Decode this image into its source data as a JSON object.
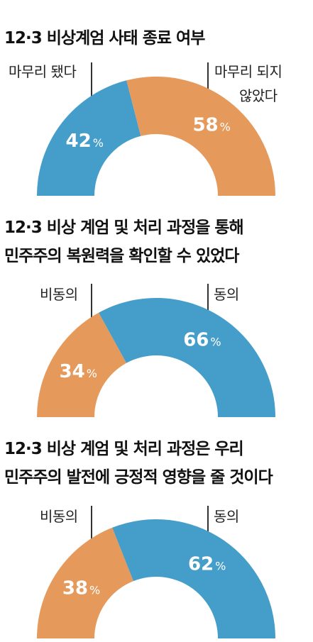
{
  "chart_data": [
    {
      "type": "pie",
      "title": "12·3 비상계엄 사태 종료 여부",
      "slices": [
        {
          "label": "마무리 됐다",
          "value": 42,
          "display": "42",
          "color": "#459ec9"
        },
        {
          "label": "마무리 되지 않았다",
          "value": 58,
          "display": "58",
          "color": "#e59a5c"
        }
      ],
      "left_label": "마무리 됐다",
      "right_label_lines": [
        "마무리 되지",
        "않았다"
      ]
    },
    {
      "type": "pie",
      "title_lines": [
        "12·3 비상 계엄 및 처리 과정을 통해",
        "민주주의 복원력을 확인할 수 있었다"
      ],
      "slices": [
        {
          "label": "비동의",
          "value": 34,
          "display": "34",
          "color": "#e59a5c"
        },
        {
          "label": "동의",
          "value": 66,
          "display": "66",
          "color": "#459ec9"
        }
      ],
      "left_label": "비동의",
      "right_label": "동의"
    },
    {
      "type": "pie",
      "title_lines": [
        "12·3 비상 계엄 및 처리 과정은 우리",
        "민주주의 발전에 긍정적 영향을 줄 것이다"
      ],
      "slices": [
        {
          "label": "비동의",
          "value": 38,
          "display": "38",
          "color": "#e59a5c"
        },
        {
          "label": "동의",
          "value": 62,
          "display": "62",
          "color": "#459ec9"
        }
      ],
      "left_label": "비동의",
      "right_label": "동의"
    }
  ],
  "percent_sign": "%"
}
